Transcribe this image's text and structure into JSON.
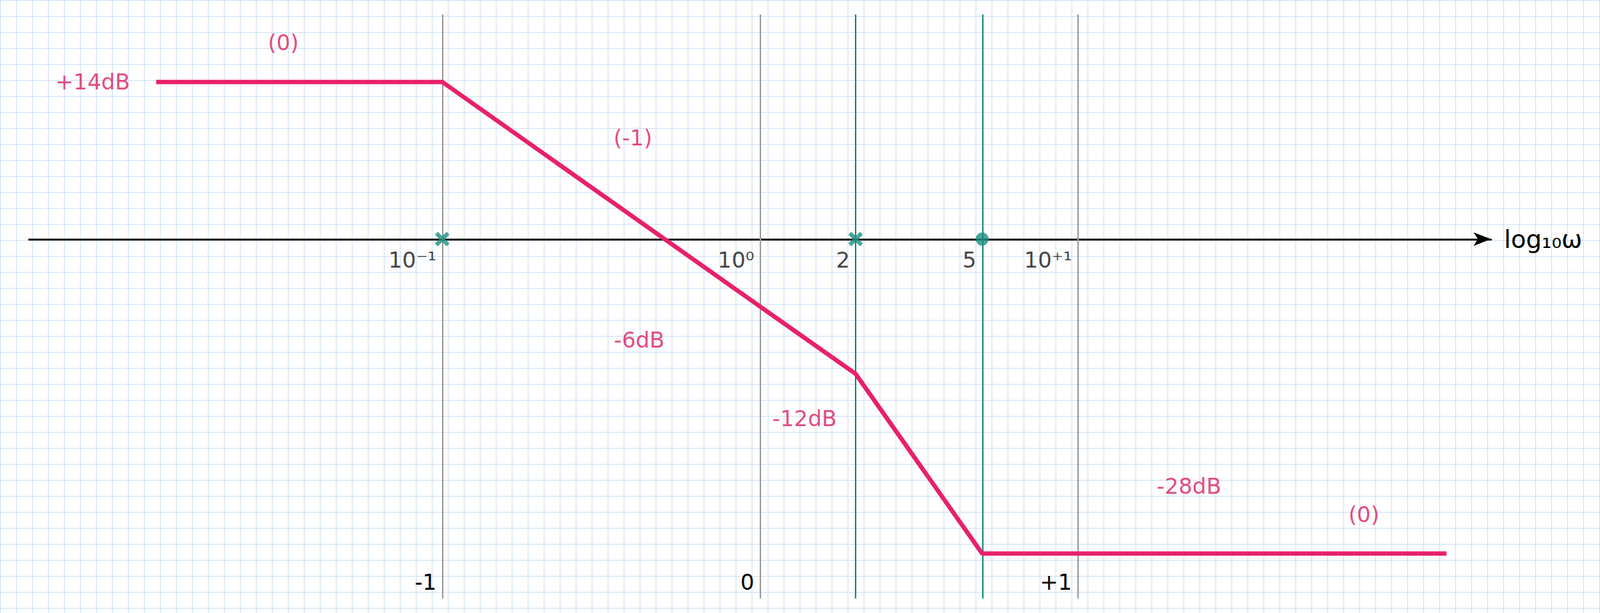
{
  "chart_data": {
    "type": "line",
    "x_label": "log₁₀ω",
    "xlim": [
      -2.3,
      2.3
    ],
    "xticks": [
      {
        "value": -1,
        "label": "-1"
      },
      {
        "value": 0,
        "label": "0"
      },
      {
        "value": 1,
        "label": "+1"
      }
    ],
    "ylim": [
      -32,
      20
    ],
    "tick_labels": "x",
    "x": [
      -1.9,
      -1,
      0,
      0.301,
      0.699,
      2.16
    ],
    "values": [
      14,
      14,
      -6,
      -12,
      -28,
      -28
    ],
    "color": "#e8206a",
    "x_marks": [
      {
        "x": -1,
        "label": "10⁻¹",
        "color": "#9e9e9e",
        "marker": "x"
      },
      {
        "x": 0,
        "label": "10⁰",
        "color": "#9e9e9e"
      },
      {
        "x": 0.301,
        "label": "2",
        "color": "#1a8f7f",
        "marker": "x"
      },
      {
        "x": 0.699,
        "label": "5",
        "color": "#1a8f7f",
        "marker": "circle"
      },
      {
        "x": 1,
        "label": "10⁺¹",
        "color": "#9e9e9e"
      }
    ],
    "annotations": [
      {
        "text": "+14dB",
        "x": -2.1,
        "y": 14
      },
      {
        "text": "(0)",
        "x": -1.5,
        "y": 17.5
      },
      {
        "text": "(-1)",
        "x": -0.4,
        "y": 9
      },
      {
        "text": "-6dB",
        "x": -0.38,
        "y": -9
      },
      {
        "text": "-12dB",
        "x": 0.14,
        "y": -16
      },
      {
        "text": "-28dB",
        "x": 1.35,
        "y": -22
      },
      {
        "text": "(0)",
        "x": 1.9,
        "y": -24.5
      }
    ]
  }
}
